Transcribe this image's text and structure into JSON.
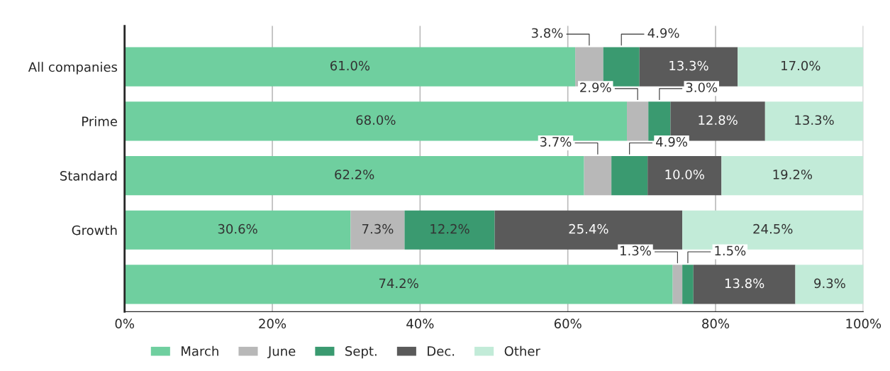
{
  "chart_data": {
    "type": "bar",
    "orientation": "horizontal",
    "stacked": true,
    "categories": [
      "All companies",
      "Prime",
      "Standard",
      "Growth",
      null
    ],
    "series": [
      {
        "name": "March",
        "color": "#6fcf9f",
        "values": [
          61.0,
          68.0,
          62.2,
          30.6,
          74.2
        ],
        "value_labels": [
          "61.0%",
          "68.0%",
          "62.2%",
          "30.6%",
          "74.2%"
        ]
      },
      {
        "name": "June",
        "color": "#b8b8b8",
        "values": [
          3.8,
          2.9,
          3.7,
          7.3,
          1.3
        ],
        "value_labels": [
          "3.8%",
          "2.9%",
          "3.7%",
          "7.3%",
          "1.3%"
        ]
      },
      {
        "name": "Sept.",
        "color": "#3a9a70",
        "values": [
          4.9,
          3.0,
          4.9,
          12.2,
          1.5
        ],
        "value_labels": [
          "4.9%",
          "3.0%",
          "4.9%",
          "12.2%",
          "1.5%"
        ]
      },
      {
        "name": "Dec.",
        "color": "#5a5a5a",
        "values": [
          13.3,
          12.8,
          10.0,
          25.4,
          13.8
        ],
        "value_labels": [
          "13.3%",
          "12.8%",
          "10.0%",
          "25.4%",
          "13.8%"
        ]
      },
      {
        "name": "Other",
        "color": "#c2ebd8",
        "values": [
          17.0,
          13.3,
          19.2,
          24.5,
          9.3
        ],
        "value_labels": [
          "17.0%",
          "13.3%",
          "19.2%",
          "24.5%",
          "9.3%"
        ]
      }
    ],
    "xlim": [
      0,
      100
    ],
    "xticks": [
      {
        "value": 0,
        "label": "0%"
      },
      {
        "value": 20,
        "label": "20%"
      },
      {
        "value": 40,
        "label": "40%"
      },
      {
        "value": 60,
        "label": "60%"
      },
      {
        "value": 80,
        "label": "80%"
      },
      {
        "value": 100,
        "label": "100%"
      }
    ],
    "grid": "x",
    "legend": "bottom"
  }
}
